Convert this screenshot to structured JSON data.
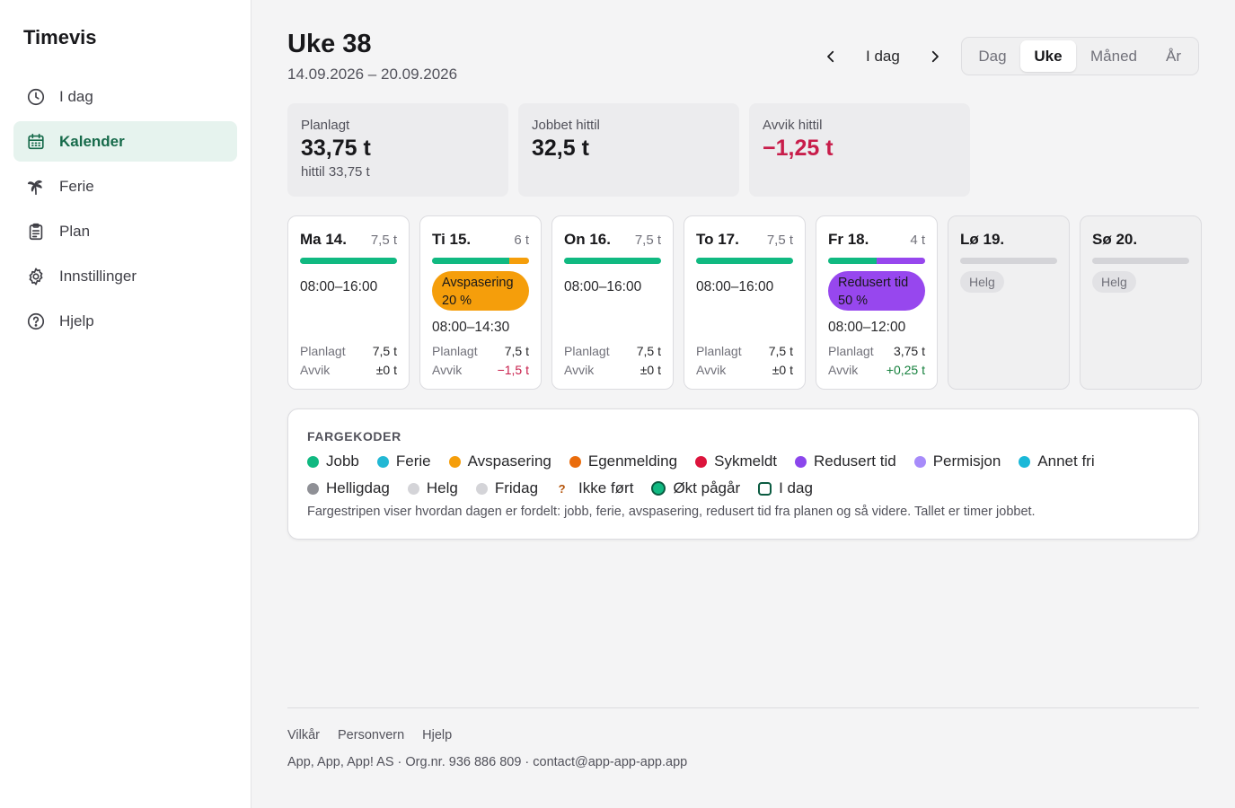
{
  "app": {
    "title": "Timevis"
  },
  "sidebar": {
    "items": [
      {
        "label": "I dag",
        "icon": "clock-icon",
        "active": false
      },
      {
        "label": "Kalender",
        "icon": "calendar-icon",
        "active": true
      },
      {
        "label": "Ferie",
        "icon": "palm-tree-icon",
        "active": false
      },
      {
        "label": "Plan",
        "icon": "clipboard-icon",
        "active": false
      },
      {
        "label": "Innstillinger",
        "icon": "gear-icon",
        "active": false
      },
      {
        "label": "Hjelp",
        "icon": "help-circle-icon",
        "active": false
      }
    ]
  },
  "header": {
    "title": "Uke 38",
    "date_range": "14.09.2026 – 20.09.2026",
    "today_label": "I dag",
    "views": [
      "Dag",
      "Uke",
      "Måned",
      "År"
    ],
    "active_view": "Uke"
  },
  "stats": [
    {
      "label": "Planlagt",
      "value": "33,75 t",
      "sub": "hittil 33,75 t"
    },
    {
      "label": "Jobbet hittil",
      "value": "32,5 t",
      "sub": ""
    },
    {
      "label": "Avvik hittil",
      "value": "−1,25 t",
      "sub": ""
    }
  ],
  "days": [
    {
      "name": "Ma 14.",
      "hours": "7,5 t",
      "bar": [
        {
          "color": "#10b981",
          "fraction": 1
        }
      ],
      "pill": null,
      "time": "08:00–16:00",
      "planned_label": "Planlagt",
      "planned": "7,5 t",
      "dev_label": "Avvik",
      "deviation": "±0 t",
      "dev_type": "zero",
      "weekend": false
    },
    {
      "name": "Ti 15.",
      "hours": "6 t",
      "bar": [
        {
          "color": "#10b981",
          "fraction": 0.8
        },
        {
          "color": "#f59e0b",
          "fraction": 0.2
        }
      ],
      "pill": {
        "line1": "Avspasering",
        "line2": "20 %",
        "type": "orange"
      },
      "time": "08:00–14:30",
      "planned_label": "Planlagt",
      "planned": "7,5 t",
      "dev_label": "Avvik",
      "deviation": "−1,5 t",
      "dev_type": "neg",
      "weekend": false
    },
    {
      "name": "On 16.",
      "hours": "7,5 t",
      "bar": [
        {
          "color": "#10b981",
          "fraction": 1
        }
      ],
      "pill": null,
      "time": "08:00–16:00",
      "planned_label": "Planlagt",
      "planned": "7,5 t",
      "dev_label": "Avvik",
      "deviation": "±0 t",
      "dev_type": "zero",
      "weekend": false
    },
    {
      "name": "To 17.",
      "hours": "7,5 t",
      "bar": [
        {
          "color": "#10b981",
          "fraction": 1
        }
      ],
      "pill": null,
      "time": "08:00–16:00",
      "planned_label": "Planlagt",
      "planned": "7,5 t",
      "dev_label": "Avvik",
      "deviation": "±0 t",
      "dev_type": "zero",
      "weekend": false
    },
    {
      "name": "Fr 18.",
      "hours": "4 t",
      "bar": [
        {
          "color": "#10b981",
          "fraction": 0.5
        },
        {
          "color": "#9747ee",
          "fraction": 0.5
        }
      ],
      "pill": {
        "line1": "Redusert tid",
        "line2": "50 %",
        "type": "purple"
      },
      "time": "08:00–12:00",
      "planned_label": "Planlagt",
      "planned": "3,75 t",
      "dev_label": "Avvik",
      "deviation": "+0,25 t",
      "dev_type": "pos",
      "weekend": false
    },
    {
      "name": "Lø 19.",
      "hours": "",
      "bar": [],
      "pill": null,
      "tag": "Helg",
      "weekend": true
    },
    {
      "name": "Sø 20.",
      "hours": "",
      "bar": [],
      "pill": null,
      "tag": "Helg",
      "weekend": true
    }
  ],
  "legend": {
    "title": "FARGEKODER",
    "row1": [
      {
        "label": "Jobb",
        "color": "#10b981"
      },
      {
        "label": "Ferie",
        "color": "#22b8d4"
      },
      {
        "label": "Avspasering",
        "color": "#f59e0b"
      },
      {
        "label": "Egenmelding",
        "color": "#ea6c0c"
      },
      {
        "label": "Sykmeldt",
        "color": "#dc143c"
      },
      {
        "label": "Redusert tid",
        "color": "#8b46ec"
      },
      {
        "label": "Permisjon",
        "color": "#a78bfa"
      },
      {
        "label": "Annet fri",
        "color": "#1ab8d8"
      }
    ],
    "row2": [
      {
        "label": "Helligdag",
        "color": "#8f9096",
        "kind": "dot"
      },
      {
        "label": "Helg",
        "color": "#d4d4d8",
        "kind": "dot"
      },
      {
        "label": "Fridag",
        "color": "#d4d4d8",
        "kind": "dot"
      },
      {
        "label": "Ikke ført",
        "color": "#b45309",
        "kind": "question",
        "symbol": "?"
      },
      {
        "label": "Økt pågår",
        "color": "#10b981",
        "kind": "ring"
      },
      {
        "label": "I dag",
        "color": "#0b5b41",
        "kind": "square"
      }
    ],
    "note": "Fargestripen viser hvordan dagen er fordelt: jobb, ferie, avspasering, redusert tid fra planen og så videre. Tallet er timer jobbet."
  },
  "footer": {
    "links": [
      "Vilkår",
      "Personvern",
      "Hjelp"
    ],
    "company": "App, App, App! AS · Org.nr. 936 886 809 · contact@app-app-app.app"
  }
}
